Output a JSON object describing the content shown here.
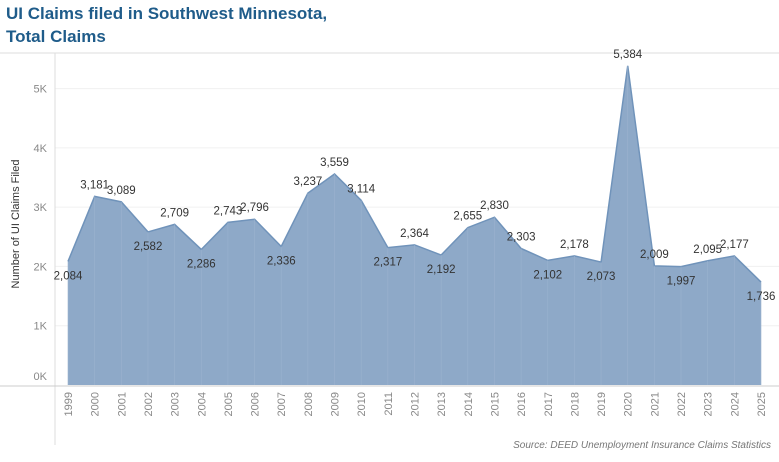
{
  "title_line1": "UI Claims filed in Southwest Minnesota,",
  "title_line2": "Total Claims",
  "source": "Source: DEED Unemployment Insurance Claims Statistics",
  "colors": {
    "fill": "#8ea9c8",
    "stroke": "#7093ba",
    "title": "#1f5c8a"
  },
  "chart_data": {
    "type": "area",
    "title": "UI Claims filed in Southwest Minnesota, Total Claims",
    "xlabel": "",
    "ylabel": "Number of UI Claims Filed",
    "ylim": [
      0,
      5600
    ],
    "yticks": [
      0,
      1000,
      2000,
      3000,
      4000,
      5000
    ],
    "ytick_labels": [
      "0K",
      "1K",
      "2K",
      "3K",
      "4K",
      "5K"
    ],
    "grid": true,
    "x": [
      "1999",
      "2000",
      "2001",
      "2002",
      "2003",
      "2004",
      "2005",
      "2006",
      "2007",
      "2008",
      "2009",
      "2010",
      "2011",
      "2012",
      "2013",
      "2014",
      "2015",
      "2016",
      "2017",
      "2018",
      "2019",
      "2020",
      "2021",
      "2022",
      "2023",
      "2024",
      "2025"
    ],
    "values": [
      2084,
      3181,
      3089,
      2582,
      2709,
      2286,
      2743,
      2796,
      2336,
      3237,
      3559,
      3114,
      2317,
      2364,
      2192,
      2655,
      2830,
      2303,
      2102,
      2178,
      2073,
      5384,
      2009,
      1997,
      2095,
      2177,
      1736
    ],
    "data_labels": [
      "2,084",
      "3,181",
      "3,089",
      "2,582",
      "2,709",
      "2,286",
      "2,743",
      "2,796",
      "2,336",
      "3,237",
      "3,559",
      "3,114",
      "2,317",
      "2,364",
      "2,192",
      "2,655",
      "2,830",
      "2,303",
      "2,102",
      "2,178",
      "2,073",
      "5,384",
      "2,009",
      "1,997",
      "2,095",
      "2,177",
      "1,736"
    ]
  }
}
